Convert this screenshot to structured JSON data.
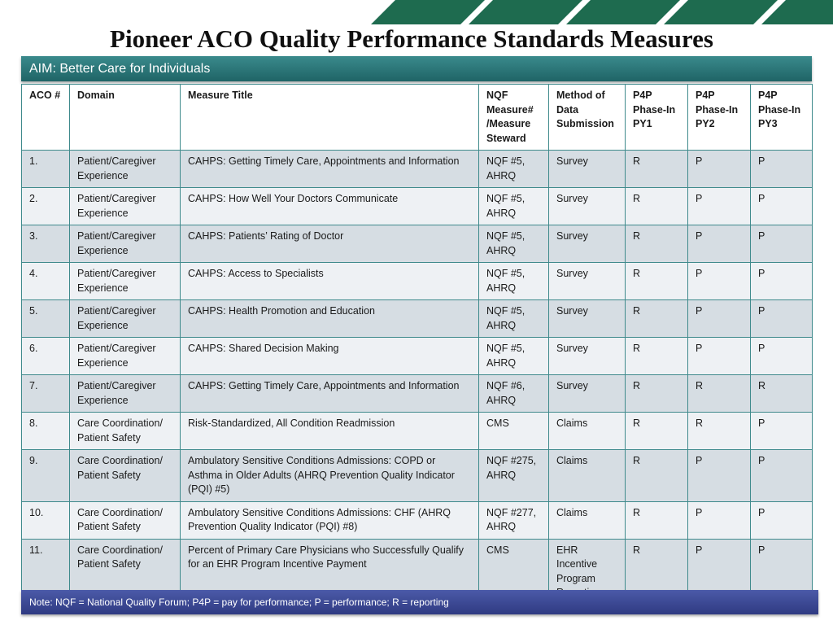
{
  "title": "Pioneer ACO Quality Performance Standards Measures",
  "aim": "AIM:  Better Care for Individuals",
  "headers": [
    "ACO #",
    "Domain",
    "Measure Title",
    "NQF Measure# /Measure Steward",
    "Method of Data Submission",
    "P4P Phase-In PY1",
    "P4P Phase-In PY2",
    "P4P Phase-In PY3"
  ],
  "rows": [
    {
      "num": "1.",
      "domain": "Patient/Caregiver Experience",
      "measure": "CAHPS:  Getting Timely Care, Appointments and Information",
      "nqf": "NQF #5, AHRQ",
      "method": "Survey",
      "py1": "R",
      "py2": "P",
      "py3": "P"
    },
    {
      "num": "2.",
      "domain": "Patient/Caregiver Experience",
      "measure": "CAHPS:  How Well Your Doctors Communicate",
      "nqf": "NQF #5, AHRQ",
      "method": "Survey",
      "py1": "R",
      "py2": "P",
      "py3": "P"
    },
    {
      "num": "3.",
      "domain": "Patient/Caregiver Experience",
      "measure": "CAHPS:  Patients’ Rating of Doctor",
      "nqf": "NQF #5, AHRQ",
      "method": "Survey",
      "py1": "R",
      "py2": "P",
      "py3": "P"
    },
    {
      "num": "4.",
      "domain": "Patient/Caregiver Experience",
      "measure": "CAHPS:  Access to Specialists",
      "nqf": "NQF #5, AHRQ",
      "method": "Survey",
      "py1": "R",
      "py2": "P",
      "py3": "P"
    },
    {
      "num": "5.",
      "domain": "Patient/Caregiver Experience",
      "measure": "CAHPS:  Health Promotion and Education",
      "nqf": "NQF #5, AHRQ",
      "method": "Survey",
      "py1": "R",
      "py2": "P",
      "py3": "P"
    },
    {
      "num": "6.",
      "domain": "Patient/Caregiver Experience",
      "measure": "CAHPS:  Shared Decision Making",
      "nqf": "NQF #5, AHRQ",
      "method": "Survey",
      "py1": "R",
      "py2": "P",
      "py3": "P"
    },
    {
      "num": "7.",
      "domain": "Patient/Caregiver Experience",
      "measure": "CAHPS:  Getting Timely Care, Appointments and Information",
      "nqf": "NQF #6, AHRQ",
      "method": "Survey",
      "py1": "R",
      "py2": "R",
      "py3": "R"
    },
    {
      "num": "8.",
      "domain": "Care Coordination/ Patient Safety",
      "measure": "Risk-Standardized, All Condition Readmission",
      "nqf": "CMS",
      "method": "Claims",
      "py1": "R",
      "py2": "R",
      "py3": "P"
    },
    {
      "num": "9.",
      "domain": "Care Coordination/ Patient Safety",
      "measure": "Ambulatory Sensitive Conditions Admissions:  COPD or Asthma in Older Adults (AHRQ Prevention Quality Indicator (PQI) #5)",
      "nqf": "NQF #275, AHRQ",
      "method": "Claims",
      "py1": "R",
      "py2": "P",
      "py3": "P"
    },
    {
      "num": "10.",
      "domain": "Care Coordination/ Patient Safety",
      "measure": "Ambulatory Sensitive Conditions Admissions:  CHF (AHRQ Prevention Quality Indicator (PQI) #8)",
      "nqf": "NQF #277, AHRQ",
      "method": "Claims",
      "py1": "R",
      "py2": "P",
      "py3": "P"
    },
    {
      "num": "11.",
      "domain": "Care Coordination/ Patient Safety",
      "measure": "Percent of Primary Care Physicians who Successfully Qualify for an EHR Program Incentive Payment",
      "nqf": "CMS",
      "method": "EHR Incentive Program Reporting",
      "py1": "R",
      "py2": "P",
      "py3": "P"
    }
  ],
  "note": "Note:  NQF = National Quality Forum; P4P = pay for performance; P = performance; R = reporting",
  "colors": {
    "stripe": "#1e6b4f",
    "aim_bar": "#2a7577",
    "note_bar": "#3a4694",
    "grid": "#3f8a8c"
  }
}
